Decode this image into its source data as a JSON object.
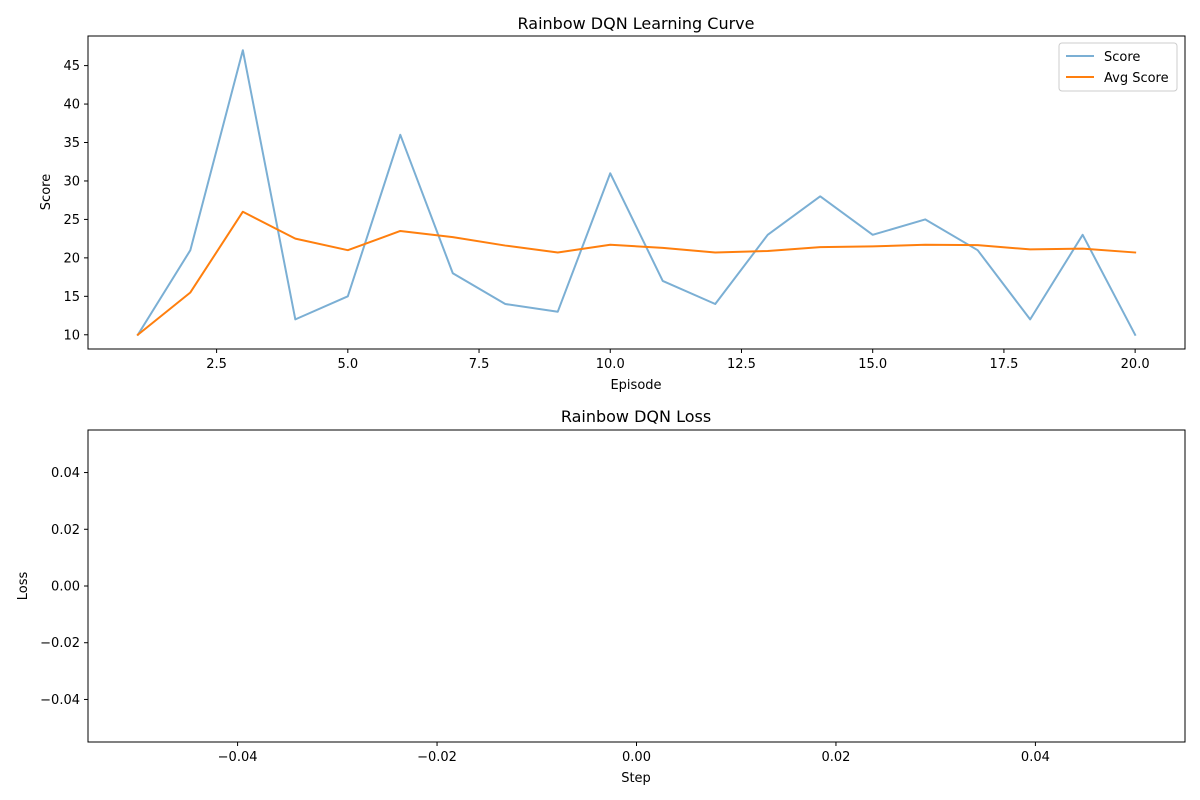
{
  "chart_data": [
    {
      "type": "line",
      "title": "Rainbow DQN Learning Curve",
      "xlabel": "Episode",
      "ylabel": "Score",
      "xlim": [
        0.05,
        20.95
      ],
      "ylim": [
        8.15,
        48.85
      ],
      "xticks": [
        2.5,
        5.0,
        7.5,
        10.0,
        12.5,
        15.0,
        17.5,
        20.0
      ],
      "xtick_labels": [
        "2.5",
        "5.0",
        "7.5",
        "10.0",
        "12.5",
        "15.0",
        "17.5",
        "20.0"
      ],
      "yticks": [
        10,
        15,
        20,
        25,
        30,
        35,
        40,
        45
      ],
      "ytick_labels": [
        "10",
        "15",
        "20",
        "25",
        "30",
        "35",
        "40",
        "45"
      ],
      "grid": false,
      "legend_position": "top-right",
      "x": [
        1,
        2,
        3,
        4,
        5,
        6,
        7,
        8,
        9,
        10,
        11,
        12,
        13,
        14,
        15,
        16,
        17,
        18,
        19,
        20
      ],
      "series": [
        {
          "name": "Score",
          "color": "#7bafd4",
          "values": [
            10,
            21,
            47,
            12,
            15,
            36,
            18,
            14,
            13,
            31,
            17,
            14,
            23,
            28,
            23,
            25,
            21,
            12,
            23,
            10
          ]
        },
        {
          "name": "Avg Score",
          "color": "#ff7f0e",
          "values": [
            10,
            15.5,
            26,
            22.5,
            21,
            23.5,
            22.7,
            21.6,
            20.7,
            21.7,
            21.3,
            20.7,
            20.9,
            21.4,
            21.5,
            21.7,
            21.65,
            21.1,
            21.2,
            20.7
          ]
        }
      ]
    },
    {
      "type": "line",
      "title": "Rainbow DQN Loss",
      "xlabel": "Step",
      "ylabel": "Loss",
      "xlim": [
        -0.055,
        0.055
      ],
      "ylim": [
        -0.055,
        0.055
      ],
      "xticks": [
        -0.04,
        -0.02,
        0.0,
        0.02,
        0.04
      ],
      "xtick_labels": [
        "−0.04",
        "−0.02",
        "0.00",
        "0.02",
        "0.04"
      ],
      "yticks": [
        -0.04,
        -0.02,
        0.0,
        0.02,
        0.04
      ],
      "ytick_labels": [
        "−0.04",
        "−0.02",
        "0.00",
        "0.02",
        "0.04"
      ],
      "grid": false,
      "series": []
    }
  ]
}
